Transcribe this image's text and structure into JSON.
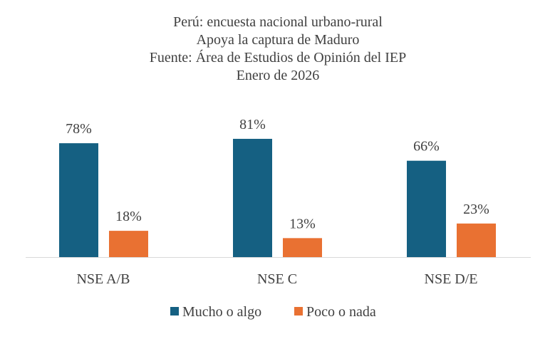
{
  "chart_data": {
    "type": "bar",
    "title_lines": [
      "Perú: encuesta nacional urbano-rural",
      "Apoya la captura de Maduro",
      "Fuente: Área de Estudios de Opinión del IEP",
      "Enero de 2026"
    ],
    "categories": [
      "NSE A/B",
      "NSE C",
      "NSE D/E"
    ],
    "series": [
      {
        "name": "Mucho o algo",
        "values": [
          78,
          81,
          66
        ],
        "labels": [
          "78%",
          "81%",
          "66%"
        ],
        "color": "#156082"
      },
      {
        "name": "Poco o nada",
        "values": [
          18,
          13,
          23
        ],
        "labels": [
          "18%",
          "13%",
          "23%"
        ],
        "color": "#E97132"
      }
    ],
    "xlabel": "",
    "ylabel": "",
    "ylim": [
      0,
      100
    ],
    "grid": false,
    "legend_placement": "bottom"
  }
}
